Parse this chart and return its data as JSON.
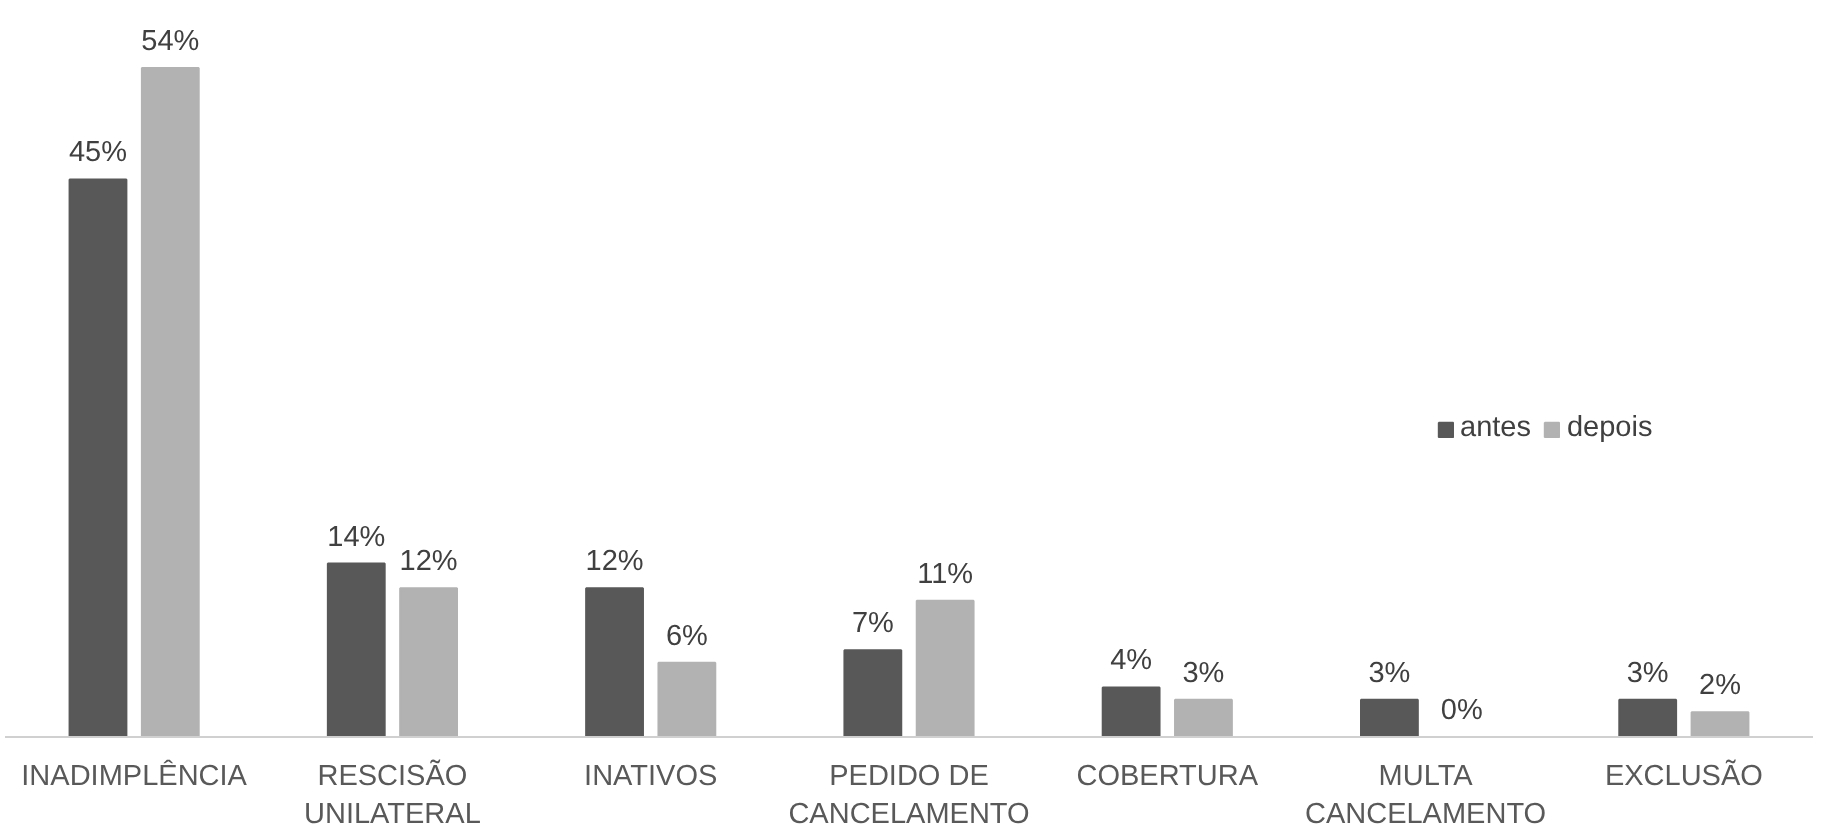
{
  "chart_data": {
    "type": "bar",
    "categories": [
      "INADIMPLÊNCIA",
      "RESCISÃO UNILATERAL",
      "INATIVOS",
      "PEDIDO DE CANCELAMENTO",
      "COBERTURA",
      "MULTA CANCELAMENTO",
      "EXCLUSÃO"
    ],
    "series": [
      {
        "name": "antes",
        "color": "#585858",
        "values": [
          45,
          14,
          12,
          7,
          4,
          3,
          3
        ],
        "value_labels": [
          "45%",
          "14%",
          "12%",
          "7%",
          "4%",
          "3%",
          "3%"
        ]
      },
      {
        "name": "depois",
        "color": "#b2b2b2",
        "values": [
          54,
          12,
          6,
          11,
          3,
          0,
          2
        ],
        "value_labels": [
          "54%",
          "12%",
          "6%",
          "11%",
          "3%",
          "0%",
          "2%"
        ]
      }
    ],
    "legend": "right",
    "grid": false,
    "tick_labels": "x"
  }
}
